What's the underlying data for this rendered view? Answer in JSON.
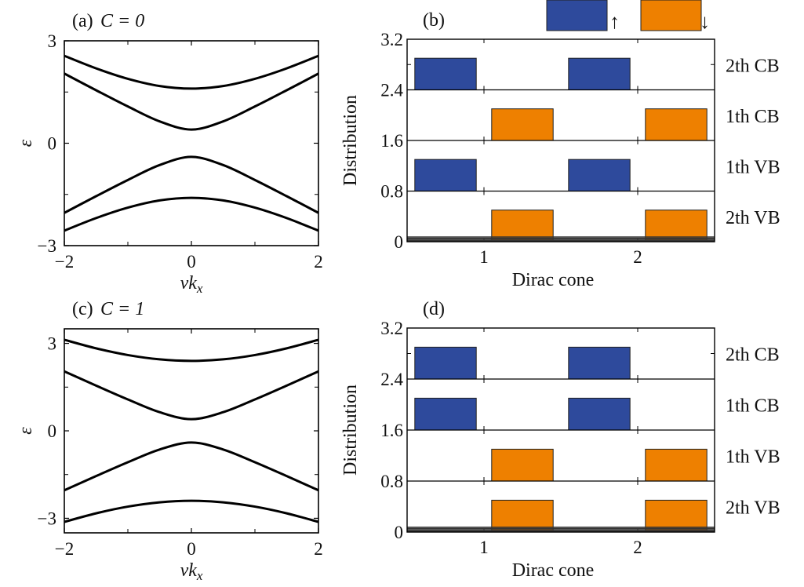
{
  "colors": {
    "spin_up": "#2E4A9C",
    "spin_down": "#EE8000",
    "line": "#000000"
  },
  "legend": {
    "up_symbol": "↑",
    "down_symbol": "↓"
  },
  "chart_data": [
    {
      "type": "line",
      "panel": "(a)",
      "title_prefix": "(a)",
      "title_math": "C = 0",
      "xlabel": "vkx",
      "ylabel": "ε",
      "xlim": [
        -2,
        2
      ],
      "ylim": [
        -3,
        3
      ],
      "xticks": [
        "-2",
        "0",
        "2"
      ],
      "xtick_values": [
        -2,
        0,
        2
      ],
      "yticks": [
        "3",
        "0",
        "−3"
      ],
      "ytick_values": [
        3,
        0,
        -3
      ],
      "x": [
        -2,
        -1.5,
        -1,
        -0.5,
        0,
        0.5,
        1,
        1.5,
        2
      ],
      "series": [
        {
          "name": "2th CB",
          "values": [
            2.561,
            2.193,
            1.887,
            1.676,
            1.6,
            1.676,
            1.887,
            2.193,
            2.561
          ]
        },
        {
          "name": "1th CB",
          "values": [
            2.04,
            1.552,
            1.077,
            0.64,
            0.4,
            0.64,
            1.077,
            1.552,
            2.04
          ]
        },
        {
          "name": "1th VB",
          "values": [
            -2.04,
            -1.552,
            -1.077,
            -0.64,
            -0.4,
            -0.64,
            -1.077,
            -1.552,
            -2.04
          ]
        },
        {
          "name": "2th VB",
          "values": [
            -2.561,
            -2.193,
            -1.887,
            -1.676,
            -1.6,
            -1.676,
            -1.887,
            -2.193,
            -2.561
          ]
        }
      ]
    },
    {
      "type": "bar",
      "panel": "(b)",
      "title_prefix": "(b)",
      "xlabel": "Dirac cone",
      "ylabel": "Distribution",
      "xlim": [
        0.5,
        2.5
      ],
      "ylim": [
        0,
        3.2
      ],
      "xticks": [
        "1",
        "2"
      ],
      "xtick_values": [
        1,
        2
      ],
      "yticks": [
        "0",
        "0.8",
        "1.6",
        "2.4",
        "3.2"
      ],
      "ytick_values": [
        0,
        0.8,
        1.6,
        2.4,
        3.2
      ],
      "legend": [
        "spin up",
        "spin down"
      ],
      "bands": [
        {
          "name": "2th CB",
          "base": 2.4,
          "spin": "up",
          "bars": [
            {
              "x0": 0.55,
              "x1": 0.95,
              "value": 0.5
            },
            {
              "x0": 1.55,
              "x1": 1.95,
              "value": 0.5
            }
          ]
        },
        {
          "name": "1th CB",
          "base": 1.6,
          "spin": "down",
          "bars": [
            {
              "x0": 1.05,
              "x1": 1.45,
              "value": 0.5
            },
            {
              "x0": 2.05,
              "x1": 2.45,
              "value": 0.5
            }
          ]
        },
        {
          "name": "1th VB",
          "base": 0.8,
          "spin": "up",
          "bars": [
            {
              "x0": 0.55,
              "x1": 0.95,
              "value": 0.5
            },
            {
              "x0": 1.55,
              "x1": 1.95,
              "value": 0.5
            }
          ]
        },
        {
          "name": "2th VB",
          "base": 0,
          "spin": "down",
          "bars": [
            {
              "x0": 1.05,
              "x1": 1.45,
              "value": 0.5
            },
            {
              "x0": 2.05,
              "x1": 2.45,
              "value": 0.5
            }
          ]
        }
      ]
    },
    {
      "type": "line",
      "panel": "(c)",
      "title_prefix": "(c)",
      "title_math": "C = 1",
      "xlabel": "vkx",
      "ylabel": "ε",
      "xlim": [
        -2,
        2
      ],
      "ylim": [
        -3.5,
        3.5
      ],
      "xticks": [
        "-2",
        "0",
        "2"
      ],
      "xtick_values": [
        -2,
        0,
        2
      ],
      "yticks": [
        "3",
        "0",
        "−3"
      ],
      "ytick_values": [
        3,
        0,
        -3
      ],
      "x": [
        -2,
        -1.5,
        -1,
        -0.5,
        0,
        0.5,
        1,
        1.5,
        2
      ],
      "series": [
        {
          "name": "2th CB",
          "values": [
            3.124,
            2.83,
            2.6,
            2.452,
            2.4,
            2.452,
            2.6,
            2.83,
            3.124
          ]
        },
        {
          "name": "1th CB",
          "values": [
            2.04,
            1.552,
            1.077,
            0.64,
            0.4,
            0.64,
            1.077,
            1.552,
            2.04
          ]
        },
        {
          "name": "1th VB",
          "values": [
            -2.04,
            -1.552,
            -1.077,
            -0.64,
            -0.4,
            -0.64,
            -1.077,
            -1.552,
            -2.04
          ]
        },
        {
          "name": "2th VB",
          "values": [
            -3.124,
            -2.83,
            -2.6,
            -2.452,
            -2.4,
            -2.452,
            -2.6,
            -2.83,
            -3.124
          ]
        }
      ]
    },
    {
      "type": "bar",
      "panel": "(d)",
      "title_prefix": "(d)",
      "xlabel": "Dirac cone",
      "ylabel": "Distribution",
      "xlim": [
        0.5,
        2.5
      ],
      "ylim": [
        0,
        3.2
      ],
      "xticks": [
        "1",
        "2"
      ],
      "xtick_values": [
        1,
        2
      ],
      "yticks": [
        "0",
        "0.8",
        "1.6",
        "2.4",
        "3.2"
      ],
      "ytick_values": [
        0,
        0.8,
        1.6,
        2.4,
        3.2
      ],
      "bands": [
        {
          "name": "2th CB",
          "base": 2.4,
          "spin": "up",
          "bars": [
            {
              "x0": 0.55,
              "x1": 0.95,
              "value": 0.5
            },
            {
              "x0": 1.55,
              "x1": 1.95,
              "value": 0.5
            }
          ]
        },
        {
          "name": "1th CB",
          "base": 1.6,
          "spin": "up",
          "bars": [
            {
              "x0": 0.55,
              "x1": 0.95,
              "value": 0.5
            },
            {
              "x0": 1.55,
              "x1": 1.95,
              "value": 0.5
            }
          ]
        },
        {
          "name": "1th VB",
          "base": 0.8,
          "spin": "down",
          "bars": [
            {
              "x0": 1.05,
              "x1": 1.45,
              "value": 0.5
            },
            {
              "x0": 2.05,
              "x1": 2.45,
              "value": 0.5
            }
          ]
        },
        {
          "name": "2th VB",
          "base": 0,
          "spin": "down",
          "bars": [
            {
              "x0": 1.05,
              "x1": 1.45,
              "value": 0.5
            },
            {
              "x0": 2.05,
              "x1": 2.45,
              "value": 0.5
            }
          ]
        }
      ]
    }
  ]
}
